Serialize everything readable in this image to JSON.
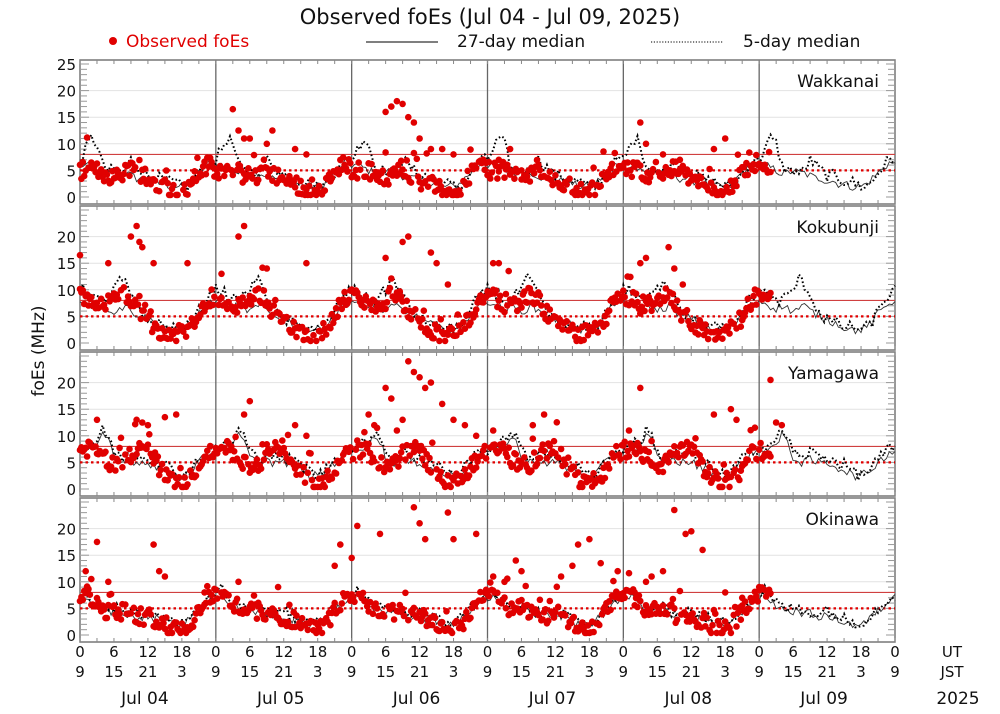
{
  "chart_data": {
    "type": "scatter",
    "title": "Observed foEs (Jul 04 - Jul 09, 2025)",
    "ylabel": "foEs (MHz)",
    "xlabel_rows": {
      "ut_label": "UT",
      "jst_label": "JST"
    },
    "year_label": "2025",
    "legend": [
      {
        "name": "Observed foEs",
        "style": "red-dot",
        "color": "#e00000"
      },
      {
        "name": "27-day median",
        "style": "solid-line",
        "color": "#000000"
      },
      {
        "name": "5-day median",
        "style": "dotted-line",
        "color": "#000000"
      }
    ],
    "legend_placement": "top",
    "days": [
      "Jul 04",
      "Jul 05",
      "Jul 06",
      "Jul 07",
      "Jul 08",
      "Jul 09"
    ],
    "ut_ticks": [
      "0",
      "6",
      "12",
      "18"
    ],
    "jst_ticks": [
      "9",
      "15",
      "21",
      "3"
    ],
    "final_ut_tick": "0",
    "final_jst_tick": "9",
    "x_range_hours": [
      0,
      144
    ],
    "observation_end_hour": 122,
    "ylim": [
      0,
      25
    ],
    "yticks_first_panel": [
      0,
      5,
      10,
      15,
      20,
      25
    ],
    "yticks_other_panels": [
      0,
      5,
      10,
      15,
      20
    ],
    "reference_lines": [
      {
        "name": "solid red threshold",
        "value": 8,
        "style": "solid",
        "color": "#d04040"
      },
      {
        "name": "dotted red threshold",
        "value": 5,
        "style": "dotted",
        "color": "#e00000"
      }
    ],
    "grid": true,
    "panels": [
      {
        "station": "Wakkanai",
        "median27_daily_profile": [
          6,
          6,
          5.5,
          5,
          4.5,
          4.5,
          5,
          4.5,
          4.5,
          4,
          3.5,
          3.5,
          3,
          3,
          2.5,
          2.5,
          2,
          2,
          2,
          2.5,
          3.5,
          4.5,
          5.5,
          6.5
        ],
        "median5_daily_profile": [
          7,
          9,
          11,
          10,
          6,
          5,
          5,
          4.5,
          5,
          7,
          6,
          5,
          4,
          4,
          3.5,
          3,
          3,
          2.5,
          2,
          2,
          3,
          4.5,
          6,
          7
        ],
        "observed_daily_profile": [
          5,
          5,
          5,
          5,
          4.5,
          4,
          4,
          3.5,
          5.5,
          5.5,
          4.5,
          4,
          3,
          3,
          2.5,
          2,
          1,
          1,
          1,
          1.5,
          3,
          4.5,
          5.5,
          6.5
        ],
        "outliers": [
          [
            27,
            16.5
          ],
          [
            28,
            12.5
          ],
          [
            29,
            11
          ],
          [
            30,
            11
          ],
          [
            33,
            10
          ],
          [
            34,
            12.5
          ],
          [
            38,
            9
          ],
          [
            40,
            8
          ],
          [
            55,
            17
          ],
          [
            56,
            18
          ],
          [
            57,
            17.5
          ],
          [
            58,
            15
          ],
          [
            59,
            14
          ],
          [
            54,
            16
          ],
          [
            60,
            11
          ],
          [
            62,
            9
          ],
          [
            64,
            9
          ],
          [
            66,
            8
          ],
          [
            74,
            7
          ],
          [
            76,
            9
          ],
          [
            78,
            5
          ],
          [
            99,
            14
          ],
          [
            100,
            10
          ],
          [
            103,
            8
          ],
          [
            106,
            7
          ],
          [
            114,
            11
          ],
          [
            112,
            9
          ]
        ]
      },
      {
        "station": "Kokubunji",
        "median27_daily_profile": [
          8,
          7.5,
          7,
          6.5,
          7,
          6.5,
          6,
          6.5,
          7,
          6,
          5.5,
          5,
          4.5,
          4,
          3.5,
          3,
          2.5,
          2.5,
          2.5,
          3,
          4,
          5.5,
          6.5,
          7.5
        ],
        "median5_daily_profile": [
          10,
          10,
          9,
          8,
          8,
          9,
          10,
          12,
          11,
          9,
          7,
          5,
          4.5,
          4,
          3.5,
          3,
          3,
          3,
          2.5,
          3,
          4,
          6,
          8,
          9
        ],
        "observed_daily_profile": [
          9,
          8.5,
          8,
          7,
          7,
          7.5,
          8,
          9,
          9,
          8,
          6,
          5,
          4,
          3,
          2.5,
          2,
          1.5,
          1.5,
          2,
          2.5,
          3.5,
          5,
          7,
          8.5
        ],
        "outliers": [
          [
            0,
            16.5
          ],
          [
            5,
            15
          ],
          [
            9,
            20
          ],
          [
            10,
            22
          ],
          [
            10.5,
            19
          ],
          [
            11,
            18
          ],
          [
            13,
            15
          ],
          [
            19,
            15
          ],
          [
            25,
            13
          ],
          [
            28,
            20
          ],
          [
            29,
            22
          ],
          [
            33,
            14
          ],
          [
            40,
            15
          ],
          [
            54,
            16
          ],
          [
            57,
            19
          ],
          [
            58,
            20
          ],
          [
            62,
            17
          ],
          [
            63,
            15
          ],
          [
            65,
            11
          ],
          [
            73,
            15
          ],
          [
            74,
            15
          ],
          [
            99,
            15
          ],
          [
            100,
            16
          ],
          [
            104,
            18
          ],
          [
            105,
            14
          ]
        ]
      },
      {
        "station": "Yamagawa",
        "median27_daily_profile": [
          7,
          7.5,
          8,
          8,
          10,
          9,
          6,
          5,
          5,
          5.5,
          5,
          5,
          5,
          4.5,
          4,
          3.5,
          3,
          2.5,
          2.5,
          3,
          4,
          5,
          6,
          7
        ],
        "median5_daily_profile": [
          7.5,
          8,
          8.5,
          9,
          11,
          10,
          7,
          6,
          6,
          7,
          6.5,
          6,
          6,
          5.5,
          5,
          4.5,
          4,
          3,
          2.5,
          3,
          4.5,
          5.5,
          6.5,
          7.5
        ],
        "observed_daily_profile": [
          7,
          7.5,
          7.5,
          7,
          6,
          5,
          4.5,
          4.5,
          5,
          6.5,
          7,
          7.5,
          7.5,
          6,
          4,
          3,
          2,
          1,
          1,
          1.5,
          2.5,
          4,
          5.5,
          7
        ],
        "outliers": [
          [
            3,
            13
          ],
          [
            10,
            13
          ],
          [
            11,
            12.5
          ],
          [
            12,
            12
          ],
          [
            15,
            13.5
          ],
          [
            17,
            14
          ],
          [
            29,
            14
          ],
          [
            30,
            16.5
          ],
          [
            38,
            12
          ],
          [
            40,
            10
          ],
          [
            51,
            14
          ],
          [
            52,
            12
          ],
          [
            54,
            19
          ],
          [
            55,
            17
          ],
          [
            56,
            11
          ],
          [
            57,
            13
          ],
          [
            58,
            24
          ],
          [
            59,
            22
          ],
          [
            60,
            21
          ],
          [
            61,
            19
          ],
          [
            62,
            20
          ],
          [
            64,
            16
          ],
          [
            66,
            13
          ],
          [
            68,
            12
          ],
          [
            70,
            10
          ],
          [
            73,
            11
          ],
          [
            80,
            12
          ],
          [
            82,
            14
          ],
          [
            97,
            11
          ],
          [
            99,
            19
          ],
          [
            101,
            9
          ],
          [
            112,
            14
          ],
          [
            115,
            15
          ],
          [
            116,
            13
          ],
          [
            122,
            20.5
          ],
          [
            123,
            12.5
          ],
          [
            124,
            12
          ]
        ]
      },
      {
        "station": "Okinawa",
        "median27_daily_profile": [
          7,
          7.5,
          6.5,
          5.5,
          5,
          4.5,
          4.5,
          4.5,
          4,
          4,
          3.5,
          3.5,
          3.5,
          3,
          3,
          2.5,
          2,
          2,
          2,
          2.5,
          3.5,
          4.5,
          5.5,
          6.5
        ],
        "median5_daily_profile": [
          7.5,
          8.5,
          7,
          6,
          5.5,
          5,
          5,
          5,
          4.5,
          4.5,
          4,
          4,
          5,
          4,
          3.5,
          3,
          2.5,
          2.5,
          2.5,
          3,
          4,
          5,
          6,
          7
        ],
        "observed_daily_profile": [
          7.5,
          8,
          7,
          5.5,
          5,
          4.5,
          5,
          4.5,
          4.5,
          4,
          3.5,
          3.5,
          3.5,
          3,
          3,
          2,
          1.5,
          1,
          1,
          1.5,
          3,
          4.5,
          6,
          7.5
        ],
        "outliers": [
          [
            1,
            12
          ],
          [
            2,
            10.5
          ],
          [
            3,
            17.5
          ],
          [
            5,
            10
          ],
          [
            13,
            17
          ],
          [
            14,
            12
          ],
          [
            15,
            11
          ],
          [
            22,
            8
          ],
          [
            25,
            8
          ],
          [
            28,
            10
          ],
          [
            35,
            9
          ],
          [
            45,
            13
          ],
          [
            46,
            17
          ],
          [
            48,
            14.5
          ],
          [
            49,
            20.5
          ],
          [
            53,
            19
          ],
          [
            59,
            24
          ],
          [
            60,
            21
          ],
          [
            61,
            18
          ],
          [
            65,
            23
          ],
          [
            66,
            18
          ],
          [
            70,
            19
          ],
          [
            73,
            11
          ],
          [
            75,
            10
          ],
          [
            77,
            14
          ],
          [
            78,
            12
          ],
          [
            85,
            11
          ],
          [
            87,
            13
          ],
          [
            88,
            17
          ],
          [
            90,
            18
          ],
          [
            92,
            13.5
          ],
          [
            95,
            12
          ],
          [
            98,
            8
          ],
          [
            100,
            10
          ],
          [
            101,
            11
          ],
          [
            103,
            12
          ],
          [
            105,
            23.5
          ],
          [
            107,
            19
          ],
          [
            108,
            19.5
          ],
          [
            110,
            16
          ],
          [
            114,
            8
          ],
          [
            117,
            7
          ],
          [
            120,
            9
          ]
        ]
      }
    ]
  }
}
